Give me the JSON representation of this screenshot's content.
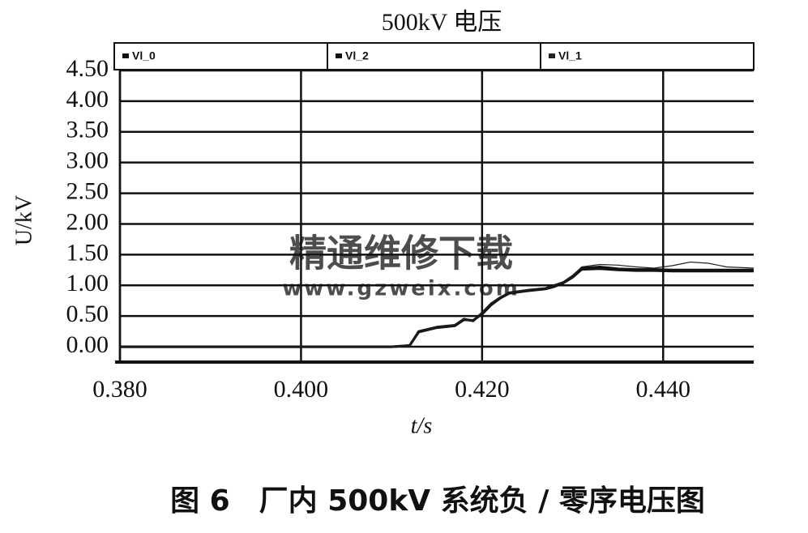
{
  "chart_data": {
    "type": "line",
    "title": "500kV 电压",
    "xlabel": "t/s",
    "ylabel": "U/kV",
    "caption": "图 6　厂内 500kV 系统负 / 零序电压图",
    "watermark": [
      "精通维修下载",
      "www.gzweix.com"
    ],
    "x": [
      0.38,
      0.39,
      0.4,
      0.41,
      0.412,
      0.413,
      0.415,
      0.417,
      0.418,
      0.419,
      0.42,
      0.421,
      0.422,
      0.423,
      0.425,
      0.427,
      0.428,
      0.429,
      0.43,
      0.431,
      0.433,
      0.435,
      0.437,
      0.439,
      0.441,
      0.443,
      0.445,
      0.447,
      0.45
    ],
    "series": [
      {
        "name": "Vl_0",
        "color": "#111111",
        "line_width": 3,
        "values": [
          0,
          0,
          0,
          0,
          0.02,
          0.25,
          0.32,
          0.35,
          0.45,
          0.42,
          0.55,
          0.7,
          0.8,
          0.88,
          0.92,
          0.95,
          1.0,
          1.05,
          1.15,
          1.28,
          1.3,
          1.27,
          1.26,
          1.26,
          1.25,
          1.25,
          1.25,
          1.25,
          1.25
        ]
      },
      {
        "name": "Vl_2",
        "color": "#111111",
        "line_width": 3,
        "values": [
          0,
          0,
          0,
          0,
          0.02,
          0.24,
          0.31,
          0.34,
          0.44,
          0.43,
          0.53,
          0.68,
          0.79,
          0.87,
          0.91,
          0.94,
          0.98,
          1.04,
          1.13,
          1.26,
          1.27,
          1.25,
          1.24,
          1.24,
          1.23,
          1.23,
          1.23,
          1.23,
          1.23
        ]
      },
      {
        "name": "Vl_1",
        "color": "#222222",
        "line_width": 1.2,
        "values": [
          0,
          0,
          0,
          0,
          0.02,
          0.25,
          0.32,
          0.35,
          0.45,
          0.42,
          0.55,
          0.7,
          0.8,
          0.88,
          0.92,
          0.95,
          1.0,
          1.05,
          1.15,
          1.3,
          1.34,
          1.33,
          1.3,
          1.28,
          1.32,
          1.38,
          1.36,
          1.3,
          1.28
        ]
      }
    ],
    "xlim": [
      0.38,
      0.45
    ],
    "ylim": [
      -0.25,
      4.5
    ],
    "xticks": [
      {
        "value": 0.38,
        "label": "0.380"
      },
      {
        "value": 0.4,
        "label": "0.400"
      },
      {
        "value": 0.42,
        "label": "0.420"
      },
      {
        "value": 0.44,
        "label": "0.440"
      }
    ],
    "yticks": [
      {
        "value": 0,
        "label": "0.00"
      },
      {
        "value": 0.5,
        "label": "0.50"
      },
      {
        "value": 1,
        "label": "1.00"
      },
      {
        "value": 1.5,
        "label": "1.50"
      },
      {
        "value": 2,
        "label": "2.00"
      },
      {
        "value": 2.5,
        "label": "2.50"
      },
      {
        "value": 3,
        "label": "3.00"
      },
      {
        "value": 3.5,
        "label": "3.50"
      },
      {
        "value": 4,
        "label": "4.00"
      },
      {
        "value": 4.5,
        "label": "4.50"
      }
    ],
    "grid": true
  }
}
